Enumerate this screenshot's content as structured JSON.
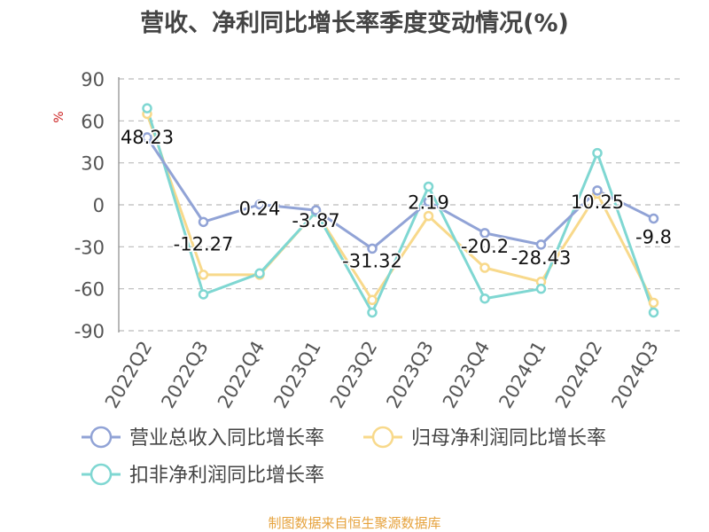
{
  "chart_data": {
    "type": "line",
    "title": "营收、净利同比增长率季度变动情况(%)",
    "ylabel": "%",
    "categories": [
      "2022Q2",
      "2022Q3",
      "2022Q4",
      "2023Q1",
      "2023Q2",
      "2023Q3",
      "2023Q4",
      "2024Q1",
      "2024Q2",
      "2024Q3"
    ],
    "ylim": [
      -90,
      90
    ],
    "yticks": [
      90,
      60,
      30,
      0,
      -30,
      -60,
      -90
    ],
    "grid": true,
    "legend_position": "bottom",
    "series": [
      {
        "name": "营业总收入同比增长率",
        "color": "#91a3d6",
        "values": [
          48.23,
          -12.27,
          0.24,
          -3.87,
          -31.32,
          2.19,
          -20.2,
          -28.43,
          10.25,
          -9.8
        ],
        "labels": [
          "48.23",
          "-12.27",
          "0.24",
          "-3.87",
          "-31.32",
          "2.19",
          "-20.2",
          "-28.43",
          "10.25",
          "-9.8"
        ]
      },
      {
        "name": "归母净利润同比增长率",
        "color": "#f8d98b",
        "values": [
          65,
          -50,
          -50,
          -5,
          -68,
          -8,
          -45,
          -55,
          8,
          -70
        ]
      },
      {
        "name": "扣非净利润同比增长率",
        "color": "#7fd7d2",
        "values": [
          69,
          -64,
          -49,
          -5,
          -77,
          13,
          -67,
          -60,
          37,
          -77
        ]
      }
    ]
  },
  "footer": {
    "source": "制图数据来自恒生聚源数据库"
  }
}
